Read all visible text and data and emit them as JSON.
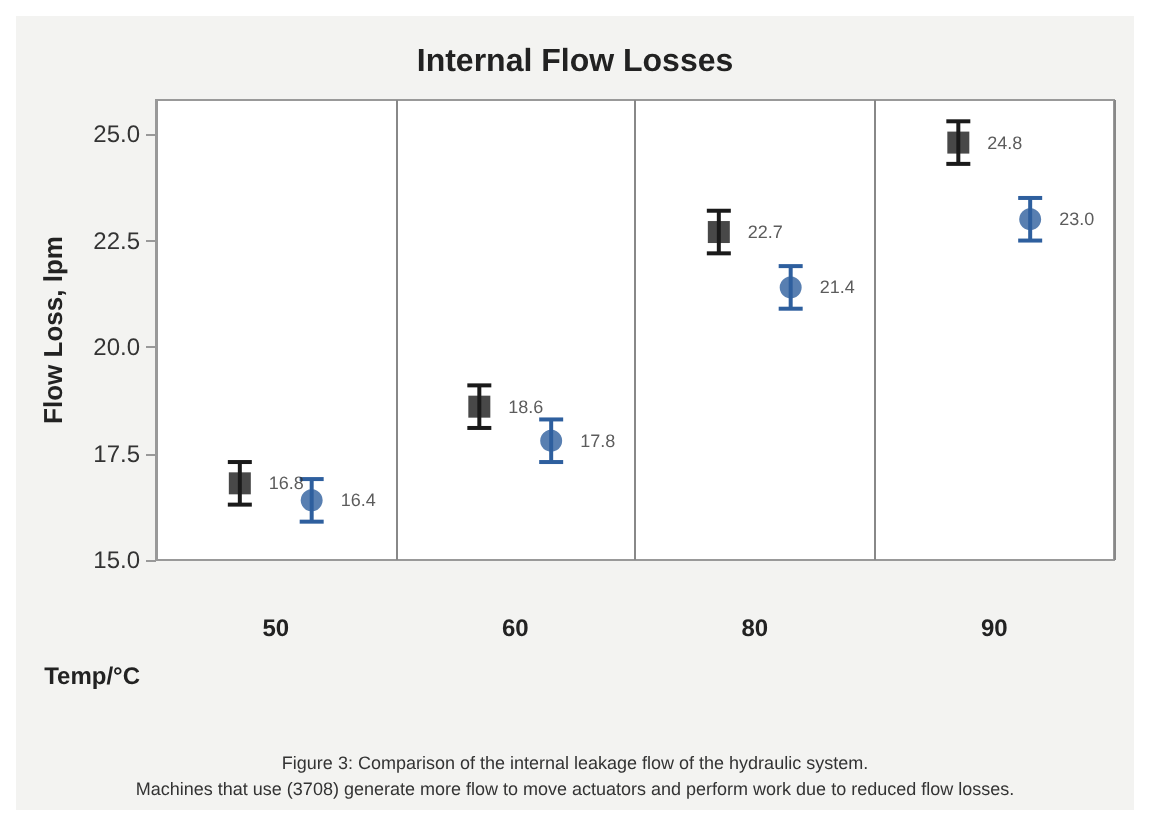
{
  "chart_data": {
    "type": "scatter",
    "title": "Internal Flow Losses",
    "xlabel": "Temp/°C",
    "ylabel": "Flow Loss, lpm",
    "categories": [
      "50",
      "60",
      "80",
      "90"
    ],
    "series": [
      {
        "color": "#1a1a1a",
        "marker": "square",
        "values": [
          16.8,
          18.6,
          22.7,
          24.8
        ],
        "errors": [
          0.5,
          0.5,
          0.5,
          0.5
        ],
        "value_labels": [
          "16.8",
          "18.6",
          "22.7",
          "24.8"
        ]
      },
      {
        "color": "#2e5f9e",
        "marker": "circle",
        "values": [
          16.4,
          17.8,
          21.4,
          23.0
        ],
        "errors": [
          0.5,
          0.5,
          0.5,
          0.5
        ],
        "value_labels": [
          "16.4",
          "17.8",
          "21.4",
          "23.0"
        ]
      }
    ],
    "ylim": [
      15,
      25.8
    ],
    "yticks": [
      {
        "value": 15,
        "label": "15.0"
      },
      {
        "value": 17.5,
        "label": "17.5"
      },
      {
        "value": 20,
        "label": "20.0"
      },
      {
        "value": 22.5,
        "label": "22.5"
      },
      {
        "value": 25,
        "label": "25.0"
      }
    ],
    "grid": "x",
    "annotations": [
      "Figure 3: Comparison of the internal leakage flow of the hydraulic system.",
      "Machines that use (3708) generate more flow to move actuators and perform work due to reduced flow losses."
    ]
  }
}
